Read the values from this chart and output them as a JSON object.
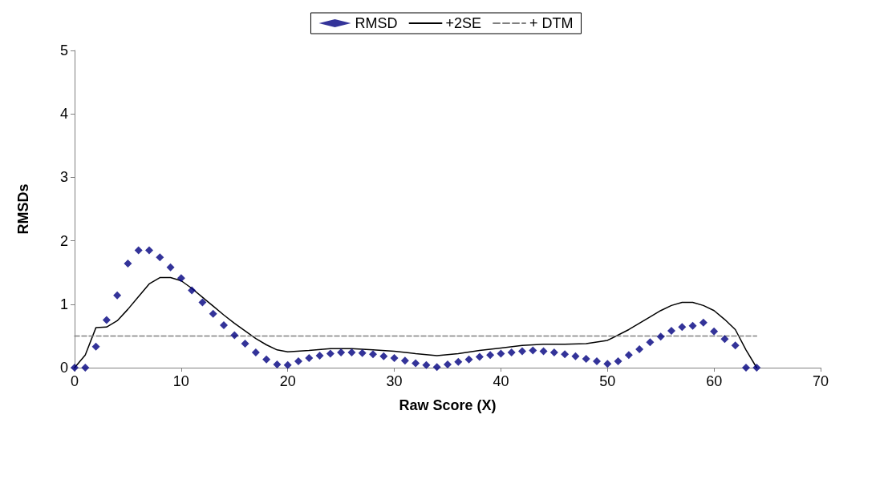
{
  "chart_data": {
    "type": "scatter",
    "xlabel": "Raw Score (X)",
    "ylabel": "RMSDs",
    "xlim": [
      0,
      70
    ],
    "xticks": [
      0,
      10,
      20,
      30,
      40,
      50,
      60,
      70
    ],
    "ylim": [
      0,
      5
    ],
    "yticks": [
      0,
      1,
      2,
      3,
      4,
      5
    ],
    "grid": false,
    "legend": "top",
    "series": [
      {
        "name": "RMSD",
        "marker": "diamond",
        "color": "#000080",
        "x": [
          0,
          1,
          2,
          3,
          4,
          5,
          6,
          7,
          8,
          9,
          10,
          11,
          12,
          13,
          14,
          15,
          16,
          17,
          18,
          19,
          20,
          21,
          22,
          23,
          24,
          25,
          26,
          27,
          28,
          29,
          30,
          31,
          32,
          33,
          34,
          35,
          36,
          37,
          38,
          39,
          40,
          41,
          42,
          43,
          44,
          45,
          46,
          47,
          48,
          49,
          50,
          51,
          52,
          53,
          54,
          55,
          56,
          57,
          58,
          59,
          60,
          61,
          62,
          63,
          64
        ],
        "values": [
          0,
          0,
          0.33,
          0.75,
          1.14,
          1.64,
          1.85,
          1.85,
          1.74,
          1.58,
          1.41,
          1.22,
          1.03,
          0.85,
          0.67,
          0.51,
          0.38,
          0.24,
          0.13,
          0.05,
          0.04,
          0.1,
          0.15,
          0.19,
          0.22,
          0.24,
          0.24,
          0.23,
          0.21,
          0.18,
          0.15,
          0.11,
          0.07,
          0.04,
          0.01,
          0.05,
          0.09,
          0.13,
          0.17,
          0.2,
          0.22,
          0.24,
          0.26,
          0.27,
          0.26,
          0.24,
          0.21,
          0.18,
          0.14,
          0.1,
          0.06,
          0.1,
          0.2,
          0.29,
          0.4,
          0.49,
          0.58,
          0.64,
          0.66,
          0.71,
          0.57,
          0.45,
          0.35,
          0,
          0
        ]
      },
      {
        "name": "+2SE",
        "type": "line",
        "marker": "none",
        "line_style": "solid",
        "color": "#000000",
        "x": [
          0,
          1,
          2,
          3,
          4,
          5,
          6,
          7,
          8,
          9,
          10,
          11,
          12,
          13,
          14,
          15,
          16,
          17,
          18,
          19,
          20,
          22,
          24,
          26,
          28,
          30,
          32,
          34,
          36,
          38,
          40,
          42,
          44,
          46,
          48,
          50,
          52,
          54,
          55,
          56,
          57,
          58,
          59,
          60,
          61,
          62,
          63,
          64
        ],
        "values": [
          0,
          0.2,
          0.63,
          0.64,
          0.74,
          0.92,
          1.12,
          1.32,
          1.42,
          1.42,
          1.37,
          1.25,
          1.11,
          0.97,
          0.83,
          0.7,
          0.58,
          0.46,
          0.36,
          0.28,
          0.25,
          0.27,
          0.3,
          0.3,
          0.28,
          0.26,
          0.22,
          0.19,
          0.22,
          0.27,
          0.31,
          0.35,
          0.37,
          0.37,
          0.38,
          0.43,
          0.6,
          0.8,
          0.9,
          0.98,
          1.03,
          1.03,
          0.98,
          0.9,
          0.76,
          0.6,
          0.28,
          0
        ]
      },
      {
        "name": "+ DTM",
        "type": "line",
        "marker": "none",
        "line_style": "dashed",
        "color": "#808080",
        "x": [
          0,
          64
        ],
        "values": [
          0.5,
          0.5
        ]
      }
    ]
  }
}
